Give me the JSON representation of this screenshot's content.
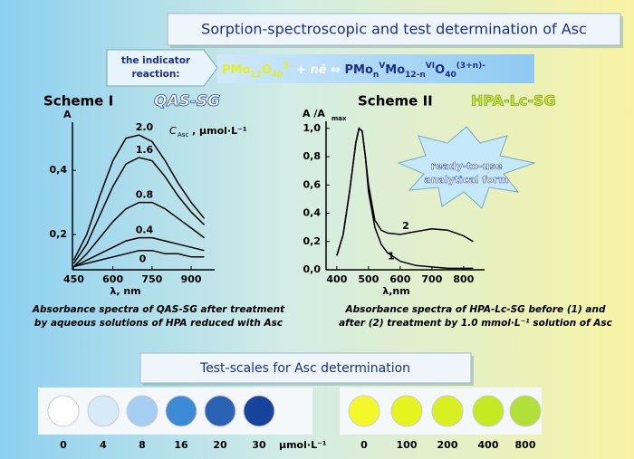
{
  "header": {
    "title": "Sorption-spectroscopic and test determination of Asc",
    "indicator_label": [
      "the indicator",
      "reaction:"
    ],
    "formula": [
      "PMo",
      "12",
      "O",
      "40",
      "3-",
      " + nē ⇔ ",
      "PMo",
      "n",
      "V",
      "Mo",
      "12-n",
      "VI",
      "O",
      "40",
      "(3+n)-"
    ]
  },
  "chart_data": [
    {
      "type": "line",
      "title": "Scheme I",
      "subtitle": "QAS-SG",
      "ylabel": "A",
      "xlabel": "λ, nm",
      "legend_title": "C",
      "legend_title_sub": "Asc",
      "legend_title_unit": " , μmol·L⁻¹",
      "x": [
        450,
        500,
        550,
        600,
        650,
        700,
        750,
        800,
        850,
        900,
        950
      ],
      "series": [
        {
          "name": "2.0",
          "color": "#000000",
          "values": [
            0.12,
            0.2,
            0.32,
            0.43,
            0.5,
            0.51,
            0.49,
            0.43,
            0.36,
            0.3,
            0.25
          ]
        },
        {
          "name": "1.6",
          "color": "#000000",
          "values": [
            0.11,
            0.17,
            0.26,
            0.35,
            0.42,
            0.44,
            0.43,
            0.38,
            0.32,
            0.27,
            0.23
          ]
        },
        {
          "name": "0.8",
          "color": "#000000",
          "values": [
            0.1,
            0.14,
            0.19,
            0.24,
            0.28,
            0.3,
            0.3,
            0.28,
            0.25,
            0.22,
            0.19
          ]
        },
        {
          "name": "0.4",
          "color": "#000000",
          "values": [
            0.1,
            0.12,
            0.14,
            0.16,
            0.18,
            0.19,
            0.19,
            0.18,
            0.17,
            0.16,
            0.15
          ]
        },
        {
          "name": "0",
          "color": "#000000",
          "values": [
            0.1,
            0.11,
            0.12,
            0.13,
            0.14,
            0.15,
            0.15,
            0.14,
            0.14,
            0.13,
            0.13
          ]
        }
      ],
      "xlim": [
        445,
        990
      ],
      "ylim": [
        0.09,
        0.55
      ],
      "xticks": [
        450,
        600,
        750,
        900
      ],
      "yticks": [
        {
          "value": 0.2,
          "label": "0,2"
        },
        {
          "value": 0.4,
          "label": "0,4"
        }
      ],
      "caption": [
        "Absorbance spectra of QAS-SG after treatment",
        "by aqueous solutions of HPA reduced with Asc"
      ]
    },
    {
      "type": "line",
      "title": "Scheme II",
      "subtitle": "HPA-Lc-SG",
      "ylabel": "A /A",
      "ylabel_sub": "max",
      "xlabel": "λ,nm",
      "annotation": [
        "ready-to-use",
        "analytical form"
      ],
      "x": [
        400,
        420,
        440,
        460,
        470,
        480,
        490,
        500,
        520,
        540,
        560,
        600,
        650,
        700,
        750,
        800,
        830
      ],
      "series": [
        {
          "name": "1",
          "color": "#000000",
          "values": [
            0.1,
            0.25,
            0.55,
            0.9,
            1.0,
            0.98,
            0.8,
            0.55,
            0.3,
            0.18,
            0.12,
            0.06,
            0.03,
            0.02,
            0.01,
            0.01,
            0.01
          ]
        },
        {
          "name": "2",
          "color": "#000000",
          "values": [
            0.1,
            0.25,
            0.55,
            0.9,
            1.0,
            0.98,
            0.8,
            0.6,
            0.35,
            0.28,
            0.26,
            0.25,
            0.27,
            0.29,
            0.28,
            0.24,
            0.2
          ]
        }
      ],
      "xlim": [
        366,
        866
      ],
      "ylim": [
        0,
        1.05
      ],
      "xticks": [
        400,
        500,
        600,
        700,
        800
      ],
      "yticks": [
        {
          "value": 0,
          "label": "0,0"
        },
        {
          "value": 0.2,
          "label": "0,2"
        },
        {
          "value": 0.4,
          "label": "0,4"
        },
        {
          "value": 0.6,
          "label": "0,6"
        },
        {
          "value": 0.8,
          "label": "0,8"
        },
        {
          "value": 1.0,
          "label": "1,0"
        }
      ],
      "caption": [
        "Absorbance spectra of HPA-Lc-SG before (1) and",
        "after (2) treatment by 1.0 mmol·L⁻¹ solution of Asc"
      ]
    }
  ],
  "test_scales": {
    "title": "Test-scales for Asc determination",
    "unit": "μmol·L⁻¹",
    "blue": [
      {
        "label": 0,
        "color": "#ffffff"
      },
      {
        "label": 4,
        "color": "#d6eaf8"
      },
      {
        "label": 8,
        "color": "#a6cdf2"
      },
      {
        "label": 16,
        "color": "#3d8ad6"
      },
      {
        "label": 20,
        "color": "#2b62b6"
      },
      {
        "label": 30,
        "color": "#17439a"
      }
    ],
    "yellow": [
      {
        "label": 0,
        "color": "#f4f828"
      },
      {
        "label": 100,
        "color": "#e6f41e"
      },
      {
        "label": 200,
        "color": "#d8ef22"
      },
      {
        "label": 400,
        "color": "#c6ea22"
      },
      {
        "label": 800,
        "color": "#b2df3a"
      }
    ]
  }
}
